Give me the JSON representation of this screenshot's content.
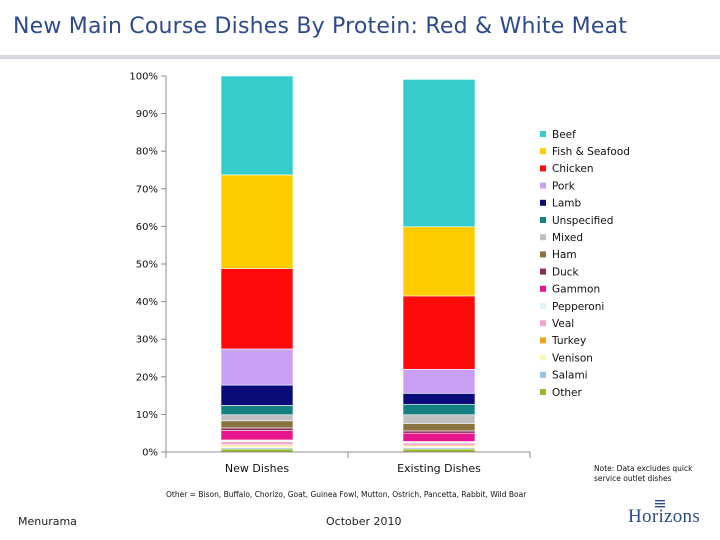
{
  "slide": {
    "title": "New Main Course Dishes By Protein: Red & White Meat",
    "note": "Note: Data excludes quick service outlet dishes",
    "footnote": "Other = Bison, Buffalo, Chorizo, Goat, Guinea Fowl, Mutton, Ostrich, Pancetta, Rabbit, Wild Boar",
    "footer_left": "Menurama",
    "footer_center": "October 2010",
    "logo_text": "Horizons",
    "logo_color": "#2e4a8c"
  },
  "chart_data": {
    "type": "bar",
    "stacked": true,
    "normalized_to_percent": true,
    "categories": [
      "New Dishes",
      "Existing Dishes"
    ],
    "ylim": [
      0,
      100
    ],
    "yticks": [
      "0%",
      "10%",
      "20%",
      "30%",
      "40%",
      "50%",
      "60%",
      "70%",
      "80%",
      "90%",
      "100%"
    ],
    "legend_position": "right",
    "grid": false,
    "series": [
      {
        "name": "Other",
        "color": "#9ab82a",
        "values": [
          0.8,
          0.8
        ]
      },
      {
        "name": "Salami",
        "color": "#9cc3e6",
        "values": [
          0.4,
          0.4
        ]
      },
      {
        "name": "Venison",
        "color": "#fdf7c0",
        "values": [
          0.5,
          0.3
        ]
      },
      {
        "name": "Turkey",
        "color": "#f4a320",
        "values": [
          0.3,
          0.3
        ]
      },
      {
        "name": "Veal",
        "color": "#f2a6cc",
        "values": [
          0.8,
          0.6
        ]
      },
      {
        "name": "Pepperoni",
        "color": "#dff3fb",
        "values": [
          0.4,
          0.4
        ]
      },
      {
        "name": "Gammon",
        "color": "#e8168c",
        "values": [
          2.5,
          2.2
        ]
      },
      {
        "name": "Duck",
        "color": "#8b2a5a",
        "values": [
          0.7,
          0.6
        ]
      },
      {
        "name": "Ham",
        "color": "#8a7340",
        "values": [
          1.9,
          2.0
        ]
      },
      {
        "name": "Mixed",
        "color": "#c0c0c0",
        "values": [
          1.6,
          2.3
        ]
      },
      {
        "name": "Unspecified",
        "color": "#158080",
        "values": [
          2.5,
          2.8
        ]
      },
      {
        "name": "Lamb",
        "color": "#0a0a78",
        "values": [
          5.4,
          2.9
        ]
      },
      {
        "name": "Pork",
        "color": "#c9a0f4",
        "values": [
          9.6,
          6.4
        ]
      },
      {
        "name": "Chicken",
        "color": "#ff0a0a",
        "values": [
          21.4,
          19.5
        ]
      },
      {
        "name": "Fish & Seafood",
        "color": "#ffcc00",
        "values": [
          24.9,
          18.4
        ]
      },
      {
        "name": "Beef",
        "color": "#36cccc",
        "values": [
          26.3,
          39.2
        ]
      }
    ]
  }
}
